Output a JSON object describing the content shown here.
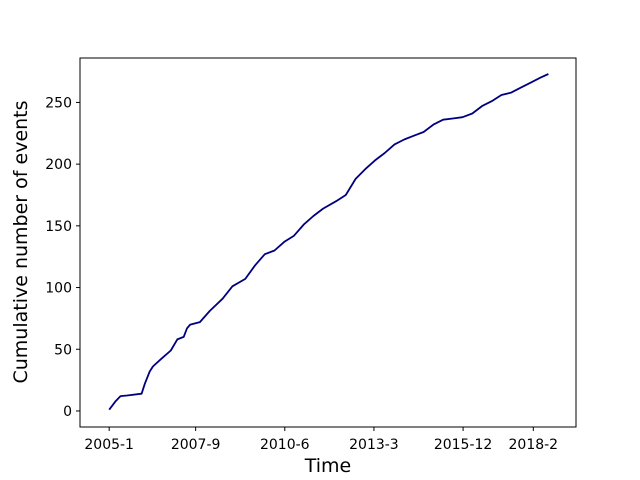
{
  "chart_data": {
    "type": "line",
    "title": "",
    "xlabel": "Time",
    "ylabel": "Cumulative number of events",
    "grid": false,
    "legend": "none",
    "line_color": "#00007f",
    "x_ticks": [
      {
        "value": 2005.0,
        "label": "2005-1"
      },
      {
        "value": 2007.667,
        "label": "2007-9"
      },
      {
        "value": 2010.417,
        "label": "2010-6"
      },
      {
        "value": 2013.167,
        "label": "2013-3"
      },
      {
        "value": 2015.917,
        "label": "2015-12"
      },
      {
        "value": 2018.083,
        "label": "2018-2"
      }
    ],
    "y_ticks": [
      0,
      50,
      100,
      150,
      200,
      250
    ],
    "xlim": [
      2004.1,
      2019.4
    ],
    "ylim": [
      -13,
      286
    ],
    "series": [
      {
        "name": "",
        "x": [
          2005.0,
          2005.2,
          2005.35,
          2005.55,
          2006.0,
          2006.1,
          2006.25,
          2006.35,
          2006.6,
          2006.9,
          2007.1,
          2007.3,
          2007.4,
          2007.5,
          2007.8,
          2008.1,
          2008.5,
          2008.8,
          2009.2,
          2009.5,
          2009.8,
          2010.1,
          2010.4,
          2010.7,
          2011.0,
          2011.3,
          2011.6,
          2012.0,
          2012.3,
          2012.6,
          2012.9,
          2013.2,
          2013.5,
          2013.8,
          2014.1,
          2014.4,
          2014.7,
          2015.0,
          2015.3,
          2015.6,
          2015.9,
          2016.2,
          2016.5,
          2016.8,
          2017.1,
          2017.4,
          2017.7,
          2018.0,
          2018.3,
          2018.55
        ],
        "y": [
          1,
          8,
          12,
          12.5,
          14,
          22,
          32,
          36,
          42,
          49,
          58,
          60,
          67,
          70,
          72,
          81,
          91,
          101,
          107,
          118,
          127,
          130,
          137,
          142,
          151,
          158,
          164,
          170,
          175,
          188,
          196,
          203,
          209,
          216,
          220,
          223,
          226,
          232,
          236,
          237,
          238,
          241,
          247,
          251,
          256,
          258,
          262,
          266,
          270,
          273
        ]
      }
    ]
  }
}
